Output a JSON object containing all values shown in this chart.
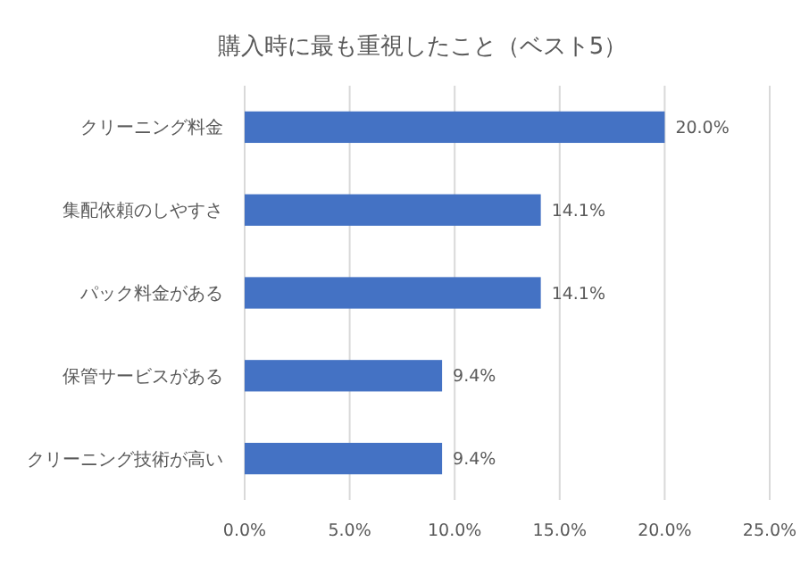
{
  "chart_data": {
    "type": "bar",
    "orientation": "horizontal",
    "title": "購入時に最も重視したこと（ベスト5）",
    "categories": [
      "クリーニング料金",
      "集配依頼のしやすさ",
      "パック料金がある",
      "保管サービスがある",
      "クリーニング技術が高い"
    ],
    "values": [
      20.0,
      14.1,
      14.1,
      9.4,
      9.4
    ],
    "value_labels": [
      "20.0%",
      "14.1%",
      "14.1%",
      "9.4%",
      "9.4%"
    ],
    "color": "#4472c4",
    "xlim": [
      0,
      25
    ],
    "xticks": [
      {
        "value": 0,
        "label": "0.0%"
      },
      {
        "value": 5,
        "label": "5.0%"
      },
      {
        "value": 10,
        "label": "10.0%"
      },
      {
        "value": 15,
        "label": "15.0%"
      },
      {
        "value": 20,
        "label": "20.0%"
      },
      {
        "value": 25,
        "label": "25.0%"
      }
    ],
    "grid": "x"
  }
}
